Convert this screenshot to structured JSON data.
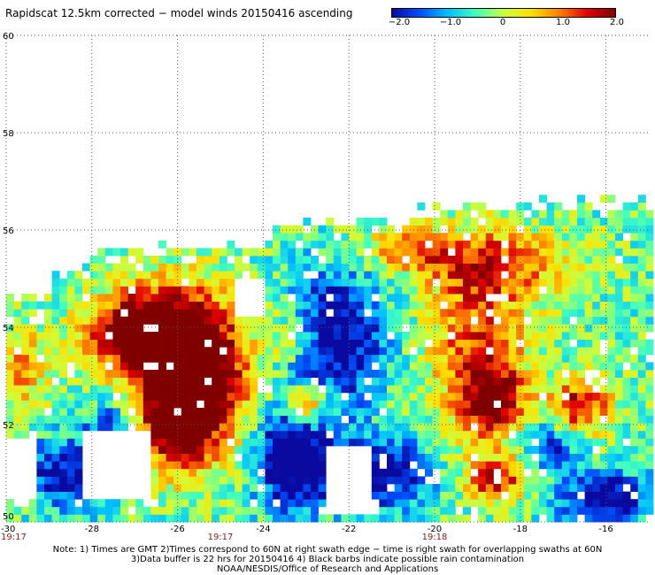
{
  "title": "Rapidscat 12.5km corrected − model winds 20150416 ascending",
  "colorbar": {
    "labels": [
      "−2.0",
      "−1.0",
      "0",
      "1.0",
      "2.0"
    ],
    "range": [
      -2.0,
      2.0
    ],
    "colors": [
      "#0a0aa0",
      "#0050ff",
      "#00c0ff",
      "#40ffc0",
      "#c8ff40",
      "#ffe000",
      "#ff8000",
      "#e00000",
      "#800000"
    ]
  },
  "map": {
    "lon_range": [
      -30,
      -15
    ],
    "lat_range": [
      50,
      60
    ],
    "lon_ticks": [
      "-30",
      "-28",
      "-26",
      "-24",
      "-22",
      "-20",
      "-18",
      "-16"
    ],
    "lat_ticks": [
      "60",
      "58",
      "56",
      "54",
      "52",
      "50"
    ],
    "time_labels": [
      "19:17",
      "19:17",
      "19:18"
    ],
    "time_label_lons": [
      -30,
      -25,
      -20
    ],
    "gridlines": true,
    "field": "scatterometer minus model wind speed difference"
  },
  "notes": {
    "line1": "Note: 1) Times are GMT 2)Times correspond to 60N at right swath edge − time is right swath for overlapping swaths at 60N",
    "line2": "3)Data buffer is 22 hrs for 20150416 4) Black barbs indicate possible rain contamination",
    "line3": "NOAA/NESDIS/Office of Research and Applications"
  }
}
